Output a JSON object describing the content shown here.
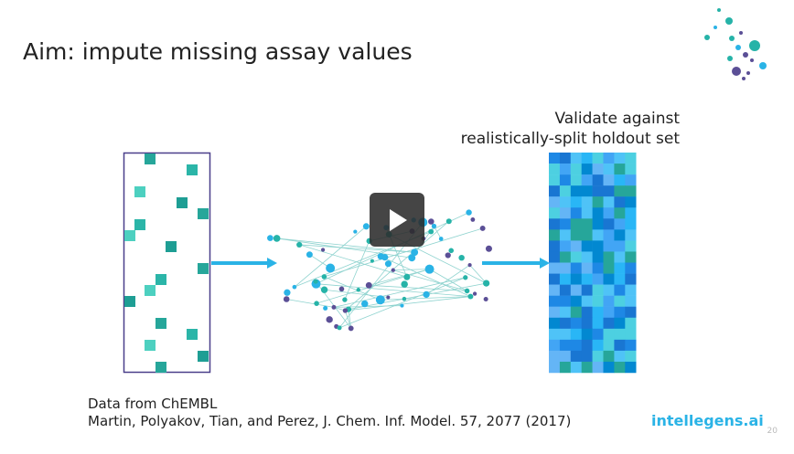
{
  "slide": {
    "title": "Aim: impute missing assay values",
    "validate_label": [
      "Validate against",
      "realistically-split holdout set"
    ],
    "citation": [
      "Data from ChEMBL",
      "Martin, Polyakov, Tian, and Perez, J. Chem. Inf. Model. 57, 2077 (2017)"
    ],
    "brand": "intellegens.ai",
    "page_number": "20"
  }
}
